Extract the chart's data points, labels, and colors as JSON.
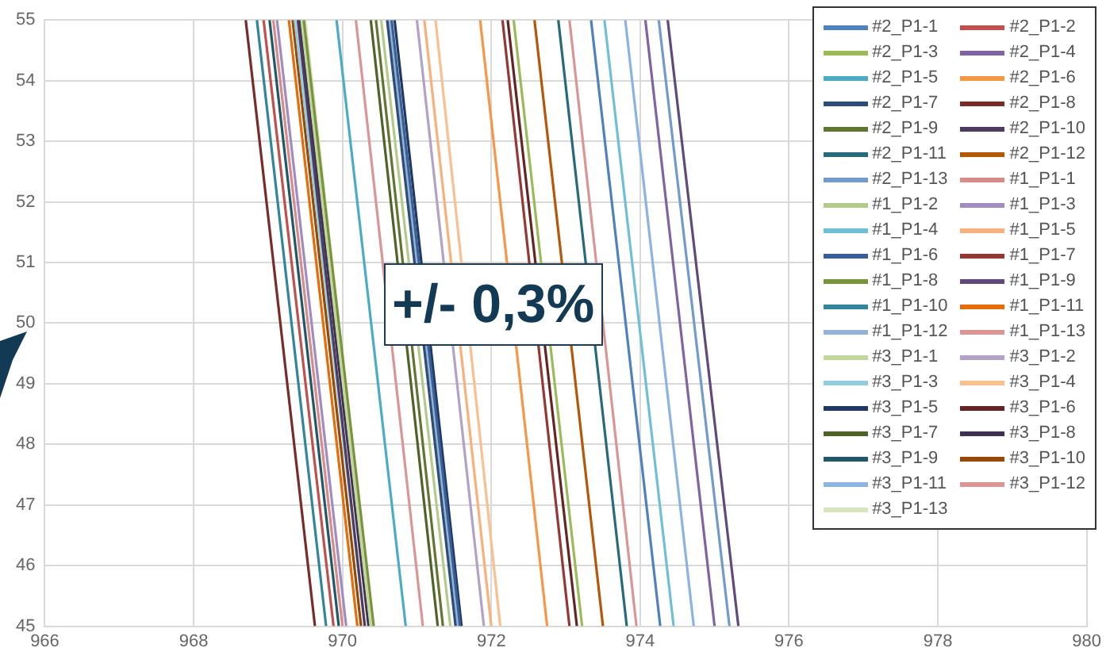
{
  "chart_data": {
    "type": "line",
    "xlim": [
      966,
      980
    ],
    "xticks": [
      966,
      968,
      970,
      972,
      974,
      976,
      978,
      980
    ],
    "ylim": [
      45,
      55
    ],
    "yticks": [
      45,
      46,
      47,
      48,
      49,
      50,
      51,
      52,
      53,
      54,
      55
    ],
    "grid": true,
    "legend": "top right",
    "marker": "none",
    "line_style": "solid",
    "annotations": [
      "+/- 0,3%"
    ],
    "series": [
      {
        "name": "#2_P1-1",
        "color": "#4f81bd",
        "x": [
          974.27,
          973.34
        ],
        "values": [
          45,
          55
        ]
      },
      {
        "name": "#2_P1-2",
        "color": "#c0504d",
        "x": [
          969.88,
          968.94
        ],
        "values": [
          45,
          55
        ]
      },
      {
        "name": "#2_P1-3",
        "color": "#9bbb59",
        "x": [
          973.22,
          972.3
        ],
        "values": [
          45,
          55
        ]
      },
      {
        "name": "#2_P1-4",
        "color": "#8064a2",
        "x": [
          975.0,
          974.07
        ],
        "values": [
          45,
          55
        ]
      },
      {
        "name": "#2_P1-5",
        "color": "#4bacc6",
        "x": [
          970.85,
          969.92
        ],
        "values": [
          45,
          55
        ]
      },
      {
        "name": "#2_P1-6",
        "color": "#f79646",
        "x": [
          972.75,
          971.85
        ],
        "values": [
          45,
          55
        ]
      },
      {
        "name": "#2_P1-7",
        "color": "#2c4d75",
        "x": [
          971.52,
          970.6
        ],
        "values": [
          45,
          55
        ]
      },
      {
        "name": "#2_P1-8",
        "color": "#772c2a",
        "x": [
          969.63,
          968.7
        ],
        "values": [
          45,
          55
        ]
      },
      {
        "name": "#2_P1-9",
        "color": "#5f7530",
        "x": [
          971.35,
          970.45
        ],
        "values": [
          45,
          55
        ]
      },
      {
        "name": "#2_P1-10",
        "color": "#4d3b62",
        "x": [
          970.3,
          969.4
        ],
        "values": [
          45,
          55
        ]
      },
      {
        "name": "#2_P1-11",
        "color": "#276a7c",
        "x": [
          973.82,
          972.9
        ],
        "values": [
          45,
          55
        ]
      },
      {
        "name": "#2_P1-12",
        "color": "#b65708",
        "x": [
          973.5,
          972.58
        ],
        "values": [
          45,
          55
        ]
      },
      {
        "name": "#2_P1-13",
        "color": "#729aca",
        "x": [
          975.2,
          974.25
        ],
        "values": [
          45,
          55
        ]
      },
      {
        "name": "#1_P1-1",
        "color": "#d98b89",
        "x": [
          970.0,
          969.07
        ],
        "values": [
          45,
          55
        ]
      },
      {
        "name": "#1_P1-2",
        "color": "#b3cb8a",
        "x": [
          971.45,
          970.52
        ],
        "values": [
          45,
          55
        ]
      },
      {
        "name": "#1_P1-3",
        "color": "#a18cbf",
        "x": [
          970.05,
          969.12
        ],
        "values": [
          45,
          55
        ]
      },
      {
        "name": "#1_P1-4",
        "color": "#6fc0d6",
        "x": [
          974.45,
          973.52
        ],
        "values": [
          45,
          55
        ]
      },
      {
        "name": "#1_P1-5",
        "color": "#f9b07a",
        "x": [
          972.0,
          971.1
        ],
        "values": [
          45,
          55
        ]
      },
      {
        "name": "#1_P1-6",
        "color": "#3a5f97",
        "x": [
          971.58,
          970.66
        ],
        "values": [
          45,
          55
        ]
      },
      {
        "name": "#1_P1-7",
        "color": "#953735",
        "x": [
          973.05,
          972.15
        ],
        "values": [
          45,
          55
        ]
      },
      {
        "name": "#1_P1-8",
        "color": "#77933c",
        "x": [
          970.42,
          969.48
        ],
        "values": [
          45,
          55
        ]
      },
      {
        "name": "#1_P1-9",
        "color": "#604a7b",
        "x": [
          975.32,
          974.37
        ],
        "values": [
          45,
          55
        ]
      },
      {
        "name": "#1_P1-10",
        "color": "#31859c",
        "x": [
          969.78,
          968.85
        ],
        "values": [
          45,
          55
        ]
      },
      {
        "name": "#1_P1-11",
        "color": "#e46c0a",
        "x": [
          970.2,
          969.28
        ],
        "values": [
          45,
          55
        ]
      },
      {
        "name": "#1_P1-12",
        "color": "#95b3d7",
        "x": [
          971.55,
          970.63
        ],
        "values": [
          45,
          55
        ]
      },
      {
        "name": "#1_P1-13",
        "color": "#d99694",
        "x": [
          971.08,
          970.18
        ],
        "values": [
          45,
          55
        ]
      },
      {
        "name": "#3_P1-1",
        "color": "#c3d69b",
        "x": [
          970.38,
          969.45
        ],
        "values": [
          45,
          55
        ]
      },
      {
        "name": "#3_P1-2",
        "color": "#b3a2c7",
        "x": [
          971.9,
          971.0
        ],
        "values": [
          45,
          55
        ]
      },
      {
        "name": "#3_P1-3",
        "color": "#93cddd",
        "x": [
          970.3,
          969.36
        ],
        "values": [
          45,
          55
        ]
      },
      {
        "name": "#3_P1-4",
        "color": "#fac090",
        "x": [
          972.12,
          971.25
        ],
        "values": [
          45,
          55
        ]
      },
      {
        "name": "#3_P1-5",
        "color": "#1f3864",
        "x": [
          971.6,
          970.7
        ],
        "values": [
          45,
          55
        ]
      },
      {
        "name": "#3_P1-6",
        "color": "#632423",
        "x": [
          973.15,
          972.22
        ],
        "values": [
          45,
          55
        ]
      },
      {
        "name": "#3_P1-7",
        "color": "#4f6228",
        "x": [
          971.28,
          970.38
        ],
        "values": [
          45,
          55
        ]
      },
      {
        "name": "#3_P1-8",
        "color": "#3f3151",
        "x": [
          970.35,
          969.42
        ],
        "values": [
          45,
          55
        ]
      },
      {
        "name": "#3_P1-9",
        "color": "#215867",
        "x": [
          969.95,
          969.02
        ],
        "values": [
          45,
          55
        ]
      },
      {
        "name": "#3_P1-10",
        "color": "#974806",
        "x": [
          970.25,
          969.33
        ],
        "values": [
          45,
          55
        ]
      },
      {
        "name": "#3_P1-11",
        "color": "#8db3e2",
        "x": [
          974.72,
          973.8
        ],
        "values": [
          45,
          55
        ]
      },
      {
        "name": "#3_P1-12",
        "color": "#da9694",
        "x": [
          973.95,
          973.05
        ],
        "values": [
          45,
          55
        ]
      },
      {
        "name": "#3_P1-13",
        "color": "#d7e4bd",
        "x": [
          970.4,
          969.5
        ],
        "values": [
          45,
          55
        ]
      }
    ]
  }
}
